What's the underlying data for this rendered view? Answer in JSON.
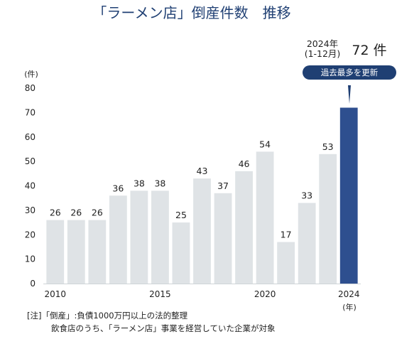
{
  "chart_data": {
    "type": "bar",
    "title": "「ラーメン店」倒産件数　推移",
    "y_unit": "(件)",
    "x_unit": "(年)",
    "ylim": [
      0,
      80
    ],
    "yticks": [
      "0",
      "10",
      "20",
      "30",
      "40",
      "50",
      "60",
      "70",
      "80"
    ],
    "categories": [
      "2010",
      "2011",
      "2012",
      "2013",
      "2014",
      "2015",
      "2016",
      "2017",
      "2018",
      "2019",
      "2020",
      "2021",
      "2022",
      "2023",
      "2024"
    ],
    "x_tick_labels": [
      "2010",
      "",
      "",
      "",
      "",
      "2015",
      "",
      "",
      "",
      "",
      "2020",
      "",
      "",
      "",
      "2024"
    ],
    "values": [
      26,
      26,
      26,
      36,
      38,
      38,
      25,
      43,
      37,
      46,
      54,
      17,
      33,
      53,
      72
    ],
    "data_labels": [
      "26",
      "26",
      "26",
      "36",
      "38",
      "38",
      "25",
      "43",
      "37",
      "46",
      "54",
      "17",
      "33",
      "53",
      ""
    ],
    "grid": false,
    "colors": {
      "bar": "#dfe3e6",
      "highlight": "#2e4f8f",
      "badge": "#1f3f73",
      "title": "#1f3f73"
    },
    "highlight": {
      "index": 14,
      "period_line1": "2024年",
      "period_line2": "(1-12月)",
      "value_text": "72 件",
      "badge": "過去最多を更新"
    }
  },
  "notes": {
    "line1": "[注]「倒産」:負債1000万円以上の法的整理",
    "line2": "飲食店のうち、「ラーメン店」事業を経営していた企業が対象"
  }
}
